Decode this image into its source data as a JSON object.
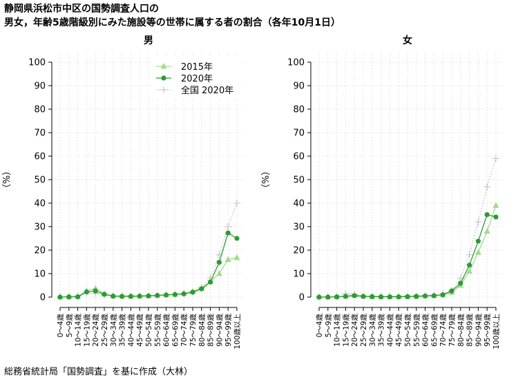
{
  "title_lines": [
    "静岡県浜松市中区の国勢調査人口の",
    "男女，年齢5歳階級別にみた施設等の世帯に属する者の割合（各年10月1日）"
  ],
  "source": "総務省統計局「国勢調査」を基に作成（大林）",
  "colors": {
    "s2015": "#9fdc8c",
    "s2020": "#2e9a35",
    "zenkoku": "#bdbdbd"
  },
  "chart_data": [
    {
      "type": "line",
      "title": "男",
      "ylabel": "（%）",
      "ylim": [
        0,
        100
      ],
      "yticks": [
        0,
        10,
        20,
        30,
        40,
        50,
        60,
        70,
        80,
        90,
        100
      ],
      "grid": true,
      "legend_position": "top-right",
      "categories": [
        "0～4歳",
        "5～9歳",
        "10～14歳",
        "15～19歳",
        "20～24歳",
        "25～29歳",
        "30～34歳",
        "35～39歳",
        "40～44歳",
        "45～49歳",
        "50～54歳",
        "55～59歳",
        "60～64歳",
        "65～69歳",
        "70～74歳",
        "75～79歳",
        "80～84歳",
        "85～89歳",
        "90～94歳",
        "95～99歳",
        "100歳以上"
      ],
      "series": [
        {
          "name": "2015年",
          "marker": "triangle",
          "values": [
            0.1,
            0.1,
            0.3,
            2.7,
            3.7,
            1.4,
            0.5,
            0.4,
            0.4,
            0.5,
            0.6,
            0.8,
            1.0,
            1.2,
            1.6,
            2.4,
            4.0,
            6.5,
            10.0,
            16.0,
            16.8
          ]
        },
        {
          "name": "2020年",
          "marker": "diamond",
          "values": [
            0.0,
            0.1,
            0.1,
            2.2,
            2.6,
            1.2,
            0.4,
            0.3,
            0.3,
            0.4,
            0.5,
            0.7,
            0.9,
            1.1,
            1.4,
            2.1,
            3.5,
            6.4,
            14.8,
            27.3,
            25.0
          ]
        },
        {
          "name": "全国 2020年",
          "marker": "plus",
          "values": [
            0.1,
            0.2,
            0.5,
            1.7,
            1.5,
            0.9,
            0.6,
            0.6,
            0.6,
            0.6,
            0.7,
            0.8,
            1.0,
            1.1,
            1.5,
            2.3,
            4.0,
            8.2,
            18.0,
            30.0,
            40.0
          ]
        }
      ]
    },
    {
      "type": "line",
      "title": "女",
      "ylabel": "（%）",
      "ylim": [
        0,
        100
      ],
      "yticks": [
        0,
        10,
        20,
        30,
        40,
        50,
        60,
        70,
        80,
        90,
        100
      ],
      "grid": true,
      "categories": [
        "0～4歳",
        "5～9歳",
        "10～14歳",
        "15～19歳",
        "20～24歳",
        "25～29歳",
        "30～34歳",
        "35～39歳",
        "40～44歳",
        "45～49歳",
        "50～54歳",
        "55～59歳",
        "60～64歳",
        "65～69歳",
        "70～74歳",
        "75～79歳",
        "80～84歳",
        "85～89歳",
        "90～94歳",
        "95～99歳",
        "100歳以上"
      ],
      "series": [
        {
          "name": "2015年",
          "marker": "triangle",
          "values": [
            0.1,
            0.1,
            0.1,
            0.5,
            0.9,
            0.4,
            0.2,
            0.2,
            0.2,
            0.2,
            0.2,
            0.3,
            0.5,
            0.6,
            0.9,
            2.0,
            5.0,
            11.0,
            19.0,
            28.0,
            39.0
          ]
        },
        {
          "name": "2020年",
          "marker": "diamond",
          "values": [
            0.0,
            0.0,
            0.1,
            0.3,
            0.6,
            0.3,
            0.2,
            0.1,
            0.1,
            0.1,
            0.2,
            0.3,
            0.5,
            0.6,
            1.0,
            2.6,
            5.9,
            13.6,
            23.8,
            35.1,
            34.1
          ]
        },
        {
          "name": "全国 2020年",
          "marker": "plus",
          "values": [
            0.1,
            0.2,
            0.3,
            1.5,
            1.2,
            0.6,
            0.4,
            0.4,
            0.4,
            0.4,
            0.5,
            0.6,
            0.7,
            0.9,
            1.3,
            2.8,
            8.0,
            18.0,
            32.0,
            47.0,
            59.0
          ]
        }
      ]
    }
  ]
}
